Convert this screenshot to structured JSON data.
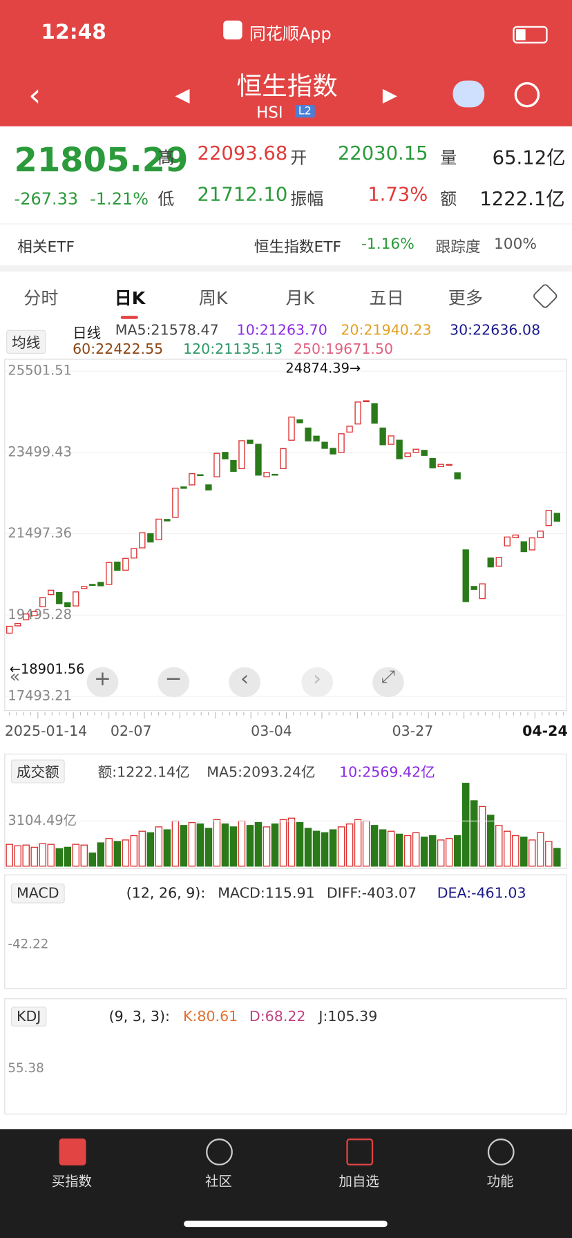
{
  "status": {
    "time": "12:48",
    "app": "同花顺App"
  },
  "header": {
    "title": "恒生指数",
    "code": "HSI",
    "badge": "L2"
  },
  "quote": {
    "price": "21805.29",
    "change": "-267.33",
    "pct": "-1.21%",
    "items": [
      {
        "label": "高",
        "value": "22093.68"
      },
      {
        "label": "开",
        "value": "22030.15"
      },
      {
        "label": "量",
        "value": "65.12亿"
      },
      {
        "label": "低",
        "value": "21712.10"
      },
      {
        "label": "振幅",
        "value": "1.73%"
      },
      {
        "label": "额",
        "value": "1222.1亿"
      }
    ]
  },
  "etf": {
    "label": "相关ETF",
    "name": "恒生指数ETF",
    "pct": "-1.16%",
    "track_label": "跟踪度",
    "track": "100%"
  },
  "tabs": [
    "分时",
    "日K",
    "周K",
    "月K",
    "五日",
    "更多"
  ],
  "ma_legend": {
    "button": "均线",
    "kind": "日线",
    "items": [
      "MA5:21578.47",
      "10:21263.70",
      "20:21940.23",
      "30:22636.08",
      "60:22422.55",
      "120:21135.13",
      "250:19671.50"
    ]
  },
  "kline": {
    "ylim": [
      17493.21,
      25501.51
    ],
    "yticks": [
      25501.51,
      23499.43,
      21497.36,
      19495.28,
      17493.21
    ],
    "high_note": "24874.39→",
    "low_note": "←18901.56",
    "xlabels": [
      "2025-01-14",
      "02-07",
      "03-04",
      "03-27",
      "04-24"
    ],
    "open": [
      19050,
      19230,
      19380,
      19480,
      19700,
      20000,
      20050,
      19800,
      19720,
      20150,
      20250,
      20300,
      20250,
      20800,
      20600,
      20900,
      21150,
      21500,
      21350,
      21850,
      21900,
      22650,
      22700,
      22950,
      22700,
      22900,
      23500,
      23300,
      23100,
      23800,
      23700,
      22900,
      22960,
      23100,
      23800,
      24300,
      24100,
      23900,
      23750,
      23600,
      23500,
      24000,
      24200,
      24750,
      24700,
      24100,
      23700,
      23800,
      23400,
      23500,
      23550,
      23350,
      23150,
      23200,
      23000,
      21100,
      20200,
      19900,
      20900,
      20700,
      21200,
      21400,
      21300,
      21100,
      21400,
      21700,
      22000
    ],
    "close": [
      19219,
      19286,
      19522,
      19584,
      19926,
      20107,
      19778,
      19700,
      20066,
      20197,
      20225,
      20217,
      20790,
      20597,
      20891,
      21133,
      21521,
      21294,
      21857,
      21814,
      22620,
      22616,
      22976,
      22944,
      22576,
      23477,
      23341,
      23034,
      23787,
      23718,
      22941,
      23006,
      22941,
      23594,
      24369,
      24231,
      23783,
      23782,
      23600,
      23462,
      23959,
      24145,
      24740,
      24771,
      24219,
      23689,
      23906,
      23344,
      23483,
      23578,
      23426,
      23120,
      23206,
      23202,
      22849,
      19828,
      20127,
      20264,
      20681,
      20915,
      21417,
      21466,
      21057,
      21395,
      21562,
      22072,
      21805.29
    ]
  },
  "volume": {
    "button": "成交额",
    "items": [
      "额:1222.14亿",
      "MA5:2093.24亿",
      "10:2569.42亿"
    ],
    "ylim": [
      0,
      5700
    ],
    "yticks": [
      {
        "value": 3104.49,
        "label": "3104.49亿"
      }
    ],
    "values": [
      1500,
      1400,
      1450,
      1300,
      1550,
      1500,
      1200,
      1300,
      1500,
      1450,
      900,
      1600,
      1900,
      1700,
      1800,
      2100,
      2400,
      2300,
      2700,
      2500,
      3100,
      2800,
      3000,
      2900,
      2600,
      3200,
      2900,
      2700,
      3100,
      2800,
      3000,
      2700,
      2900,
      3200,
      3300,
      3000,
      2600,
      2400,
      2300,
      2500,
      2700,
      2900,
      3200,
      3100,
      2800,
      2500,
      2400,
      2200,
      2100,
      2300,
      2000,
      2100,
      1800,
      1900,
      2100,
      5700,
      4500,
      4100,
      3500,
      2800,
      2400,
      2100,
      2000,
      1800,
      2300,
      1700,
      1222.14
    ]
  },
  "macd": {
    "button": "MACD",
    "params": "(12, 26, 9):",
    "items": [
      "MACD:115.91",
      "DIFF:-403.07",
      "DEA:-461.03"
    ],
    "axis": "-42.22"
  },
  "kdj": {
    "button": "KDJ",
    "params": "(9, 3, 3):",
    "items": [
      "K:80.61",
      "D:68.22",
      "J:105.39"
    ],
    "axis": "55.38"
  },
  "nav": [
    "买指数",
    "社区",
    "加自选",
    "功能"
  ]
}
